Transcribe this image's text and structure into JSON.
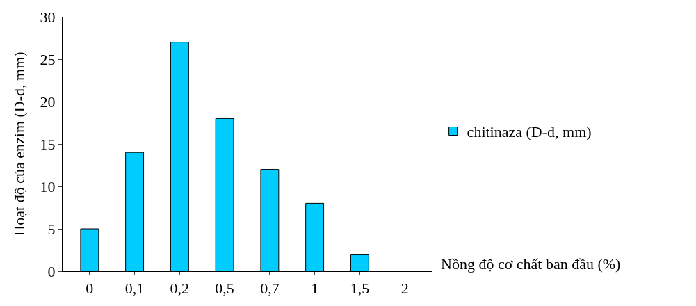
{
  "chart_data": {
    "type": "bar",
    "categories": [
      "0",
      "0,1",
      "0,2",
      "0,5",
      "0,7",
      "1",
      "1,5",
      "2"
    ],
    "series": [
      {
        "name": "chitinaza (D-d, mm)",
        "color": "#00ccff",
        "values": [
          5,
          14,
          27,
          18,
          12,
          8,
          2,
          0
        ]
      }
    ],
    "xlabel": "Nồng độ cơ chất ban đầu (%)",
    "ylabel": "Hoạt độ của enzim (D-d, mm)",
    "ylim": [
      0,
      30
    ],
    "yticks": [
      0,
      5,
      10,
      15,
      20,
      25,
      30
    ],
    "legend": "right"
  }
}
